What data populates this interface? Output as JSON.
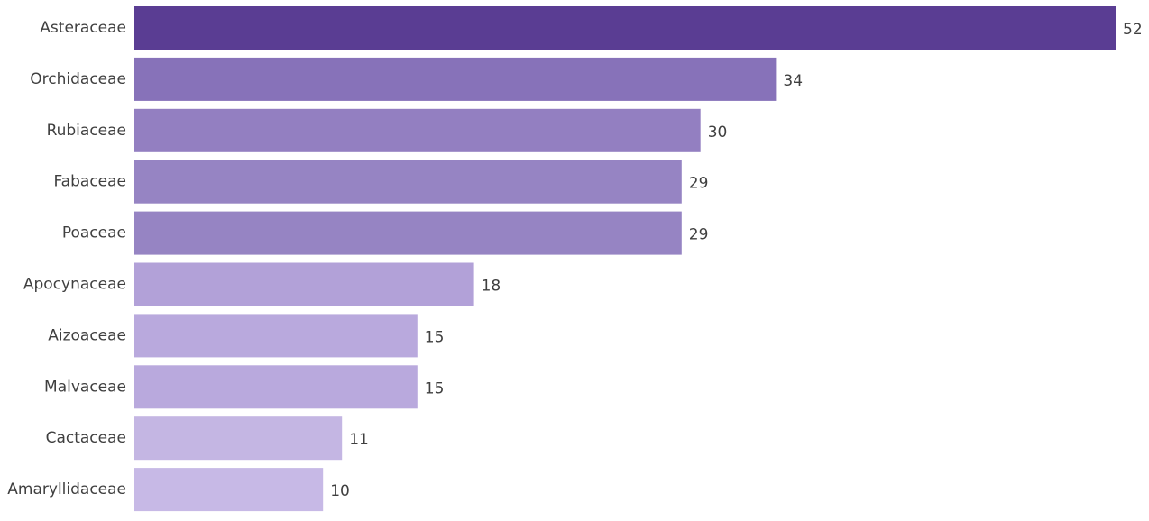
{
  "chart_data": {
    "type": "bar",
    "orientation": "horizontal",
    "title": "",
    "xlabel": "",
    "ylabel": "",
    "xlim": [
      0,
      52
    ],
    "grid": false,
    "legend": "none",
    "categories": [
      "Asteraceae",
      "Orchidaceae",
      "Rubiaceae",
      "Fabaceae",
      "Poaceae",
      "Apocynaceae",
      "Aizoaceae",
      "Malvaceae",
      "Cactaceae",
      "Amaryllidaceae"
    ],
    "values": [
      52,
      34,
      30,
      29,
      29,
      18,
      15,
      15,
      11,
      10
    ],
    "bar_colors": [
      "#5a3d93",
      "#8772b9",
      "#937fc1",
      "#9684c3",
      "#9684c3",
      "#b2a1d8",
      "#b9a9dd",
      "#b9a9dd",
      "#c4b6e3",
      "#c7b9e6"
    ],
    "label_color": "#3f3f3f"
  }
}
